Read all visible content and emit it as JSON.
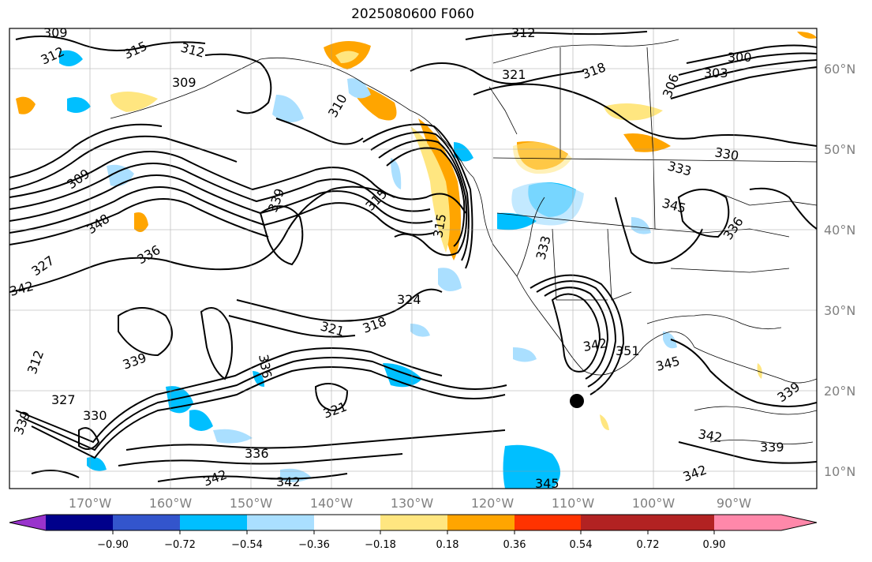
{
  "title": "2025080600 F060",
  "lat_labels": [
    "60°N",
    "50°N",
    "40°N",
    "30°N",
    "20°N",
    "10°N"
  ],
  "lon_labels": [
    "170°W",
    "160°W",
    "150°W",
    "140°W",
    "130°W",
    "120°W",
    "110°W",
    "100°W",
    "90°W"
  ],
  "colorbar": {
    "labels": [
      "−0.90",
      "−0.72",
      "−0.54",
      "−0.36",
      "−0.18",
      "0.18",
      "0.36",
      "0.54",
      "0.72",
      "0.90"
    ],
    "colors": [
      "#9933cc",
      "#00008b",
      "#3355cc",
      "#00bfff",
      "#aadfff",
      "#ffffff",
      "#ffe680",
      "#ffa500",
      "#ff3300",
      "#b22222",
      "#ff88aa"
    ]
  },
  "contour_labels": [
    "309",
    "312",
    "315",
    "312",
    "309",
    "312",
    "321",
    "318",
    "300",
    "303",
    "306",
    "310",
    "309",
    "315",
    "330",
    "333",
    "345",
    "348",
    "336",
    "336",
    "327",
    "342",
    "339",
    "324",
    "321",
    "318",
    "315",
    "312",
    "336",
    "327",
    "330",
    "333",
    "321",
    "339",
    "336",
    "342",
    "342",
    "345",
    "342",
    "351",
    "345",
    "339",
    "342",
    "339",
    "342",
    "339"
  ],
  "colors": {
    "contour": "#000000",
    "frame": "#000000",
    "grid": "#999999"
  }
}
